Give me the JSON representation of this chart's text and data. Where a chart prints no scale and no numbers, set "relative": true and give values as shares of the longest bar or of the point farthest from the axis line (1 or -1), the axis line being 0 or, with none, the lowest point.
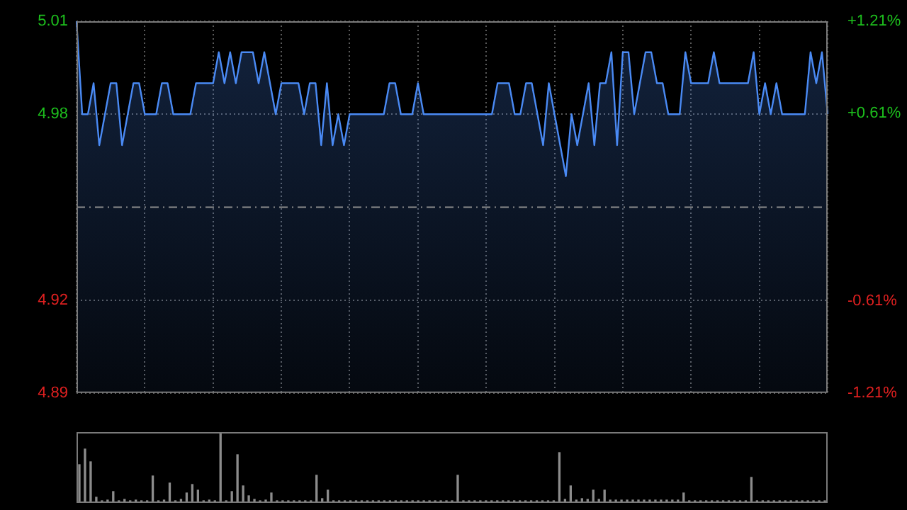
{
  "chart_data": [
    {
      "type": "area",
      "categories": [
        null,
        null,
        null,
        null,
        null,
        null,
        null,
        null,
        null,
        null,
        null,
        null,
        null,
        null,
        null,
        null,
        null,
        null,
        null,
        null,
        null,
        null,
        null,
        null,
        null,
        null,
        null,
        null,
        null,
        null,
        null,
        null,
        null,
        null,
        null,
        null,
        null,
        null,
        null,
        null,
        null,
        null,
        null,
        null,
        null,
        null,
        null,
        null,
        null,
        null,
        null,
        null,
        null,
        null,
        null,
        null,
        null,
        null,
        null,
        null,
        null,
        null,
        null,
        null,
        null,
        null,
        null,
        null,
        null,
        null,
        null,
        null,
        null,
        null,
        null,
        null,
        null,
        null,
        null,
        null,
        null,
        null,
        null,
        null,
        null,
        null,
        null,
        null,
        null,
        null,
        null,
        null,
        null,
        null,
        null,
        null,
        null,
        null,
        null,
        null,
        null,
        null,
        null,
        null,
        null,
        null,
        null,
        null,
        null,
        null,
        null,
        null,
        null,
        null,
        null,
        null,
        null,
        null,
        null,
        null,
        null,
        null,
        null,
        null,
        null,
        null,
        null,
        null,
        null,
        null,
        null,
        null,
        null
      ],
      "series": [
        {
          "color": "#4a8af4",
          "values": [
            5.01,
            4.98,
            4.98,
            4.99,
            4.97,
            4.98,
            4.99,
            4.99,
            4.97,
            4.98,
            4.99,
            4.99,
            4.98,
            4.98,
            4.98,
            4.99,
            4.99,
            4.98,
            4.98,
            4.98,
            4.98,
            4.99,
            4.99,
            4.99,
            4.99,
            5.0,
            4.99,
            5.0,
            4.99,
            5.0,
            5.0,
            5.0,
            4.99,
            5.0,
            4.99,
            4.98,
            4.99,
            4.99,
            4.99,
            4.99,
            4.98,
            4.99,
            4.99,
            4.97,
            4.99,
            4.97,
            4.98,
            4.97,
            4.98,
            4.98,
            4.98,
            4.98,
            4.98,
            4.98,
            4.98,
            4.99,
            4.99,
            4.98,
            4.98,
            4.98,
            4.99,
            4.98,
            4.98,
            4.98,
            4.98,
            4.98,
            4.98,
            4.98,
            4.98,
            4.98,
            4.98,
            4.98,
            4.98,
            4.98,
            4.99,
            4.99,
            4.99,
            4.98,
            4.98,
            4.99,
            4.99,
            4.98,
            4.97,
            4.99,
            4.98,
            4.97,
            4.96,
            4.98,
            4.97,
            4.98,
            4.99,
            4.97,
            4.99,
            4.99,
            5.0,
            4.97,
            5.0,
            5.0,
            4.98,
            4.99,
            5.0,
            5.0,
            4.99,
            4.99,
            4.98,
            4.98,
            4.98,
            5.0,
            4.99,
            4.99,
            4.99,
            4.99,
            5.0,
            4.99,
            4.99,
            4.99,
            4.99,
            4.99,
            4.99,
            5.0,
            4.98,
            4.99,
            4.98,
            4.99,
            4.98,
            4.98,
            4.98,
            4.98,
            4.98,
            5.0,
            4.99,
            5.0,
            4.98
          ]
        }
      ],
      "ylim": [
        4.89,
        5.01
      ],
      "yticks": [
        5.01,
        4.98,
        4.92,
        4.89
      ],
      "y2lim": [
        -1.21,
        1.21
      ],
      "y2ticks": [
        {
          "value": 1.21,
          "label": "+1.21%"
        },
        {
          "value": 0.61,
          "label": "+0.61%"
        },
        {
          "value": -0.61,
          "label": "-0.61%"
        },
        {
          "value": -1.21,
          "label": "-1.21%"
        }
      ],
      "ref_lines": [
        {
          "axis": "y",
          "value": 4.95,
          "color": "#8c8c8c",
          "line_style": "dashdot"
        }
      ],
      "grid": true,
      "tick_labels": "y",
      "marker": "none",
      "line_style": "solid",
      "legend": false
    },
    {
      "type": "bar",
      "relative": true,
      "categories": [
        null,
        null,
        null,
        null,
        null,
        null,
        null,
        null,
        null,
        null,
        null,
        null,
        null,
        null,
        null,
        null,
        null,
        null,
        null,
        null,
        null,
        null,
        null,
        null,
        null,
        null,
        null,
        null,
        null,
        null,
        null,
        null,
        null,
        null,
        null,
        null,
        null,
        null,
        null,
        null,
        null,
        null,
        null,
        null,
        null,
        null,
        null,
        null,
        null,
        null,
        null,
        null,
        null,
        null,
        null,
        null,
        null,
        null,
        null,
        null,
        null,
        null,
        null,
        null,
        null,
        null,
        null,
        null,
        null,
        null,
        null,
        null,
        null,
        null,
        null,
        null,
        null,
        null,
        null,
        null,
        null,
        null,
        null,
        null,
        null,
        null,
        null,
        null,
        null,
        null,
        null,
        null,
        null,
        null,
        null,
        null,
        null,
        null,
        null,
        null,
        null,
        null,
        null,
        null,
        null,
        null,
        null,
        null,
        null,
        null,
        null,
        null,
        null,
        null,
        null,
        null,
        null,
        null,
        null,
        null,
        null,
        null,
        null,
        null,
        null,
        null,
        null,
        null,
        null,
        null,
        null,
        null,
        null
      ],
      "series": [
        {
          "color": "#8c8c8c",
          "values": [
            0.54,
            0.76,
            0.58,
            0.08,
            0.03,
            0.04,
            0.16,
            0.03,
            0.05,
            0.03,
            0.04,
            0.03,
            0.03,
            0.38,
            0.03,
            0.04,
            0.28,
            0.03,
            0.05,
            0.14,
            0.26,
            0.18,
            0.03,
            0.04,
            0.03,
            1,
            0.03,
            0.16,
            0.68,
            0.24,
            0.1,
            0.05,
            0.03,
            0.04,
            0.14,
            0.03,
            0.03,
            0.03,
            0.03,
            0.03,
            0.03,
            0.03,
            0.39,
            0.06,
            0.18,
            0.03,
            0.03,
            0.03,
            0.03,
            0.03,
            0.03,
            0.03,
            0.03,
            0.03,
            0.03,
            0.03,
            0.03,
            0.03,
            0.03,
            0.03,
            0.03,
            0.03,
            0.03,
            0.03,
            0.03,
            0.03,
            0.03,
            0.39,
            0.03,
            0.03,
            0.03,
            0.03,
            0.03,
            0.03,
            0.03,
            0.03,
            0.03,
            0.03,
            0.03,
            0.03,
            0.03,
            0.03,
            0.03,
            0.03,
            0.03,
            0.71,
            0.05,
            0.24,
            0.04,
            0.06,
            0.05,
            0.18,
            0.05,
            0.18,
            0.04,
            0.04,
            0.04,
            0.04,
            0.04,
            0.04,
            0.04,
            0.04,
            0.04,
            0.04,
            0.04,
            0.04,
            0.04,
            0.14,
            0.03,
            0.03,
            0.03,
            0.03,
            0.03,
            0.03,
            0.03,
            0.03,
            0.03,
            0.03,
            0.03,
            0.36,
            0.03,
            0.03,
            0.03,
            0.03,
            0.03,
            0.03,
            0.03,
            0.03,
            0.03,
            0.03,
            0.03,
            0.03,
            0.03
          ]
        }
      ],
      "tick_labels": false,
      "legend": false
    }
  ]
}
